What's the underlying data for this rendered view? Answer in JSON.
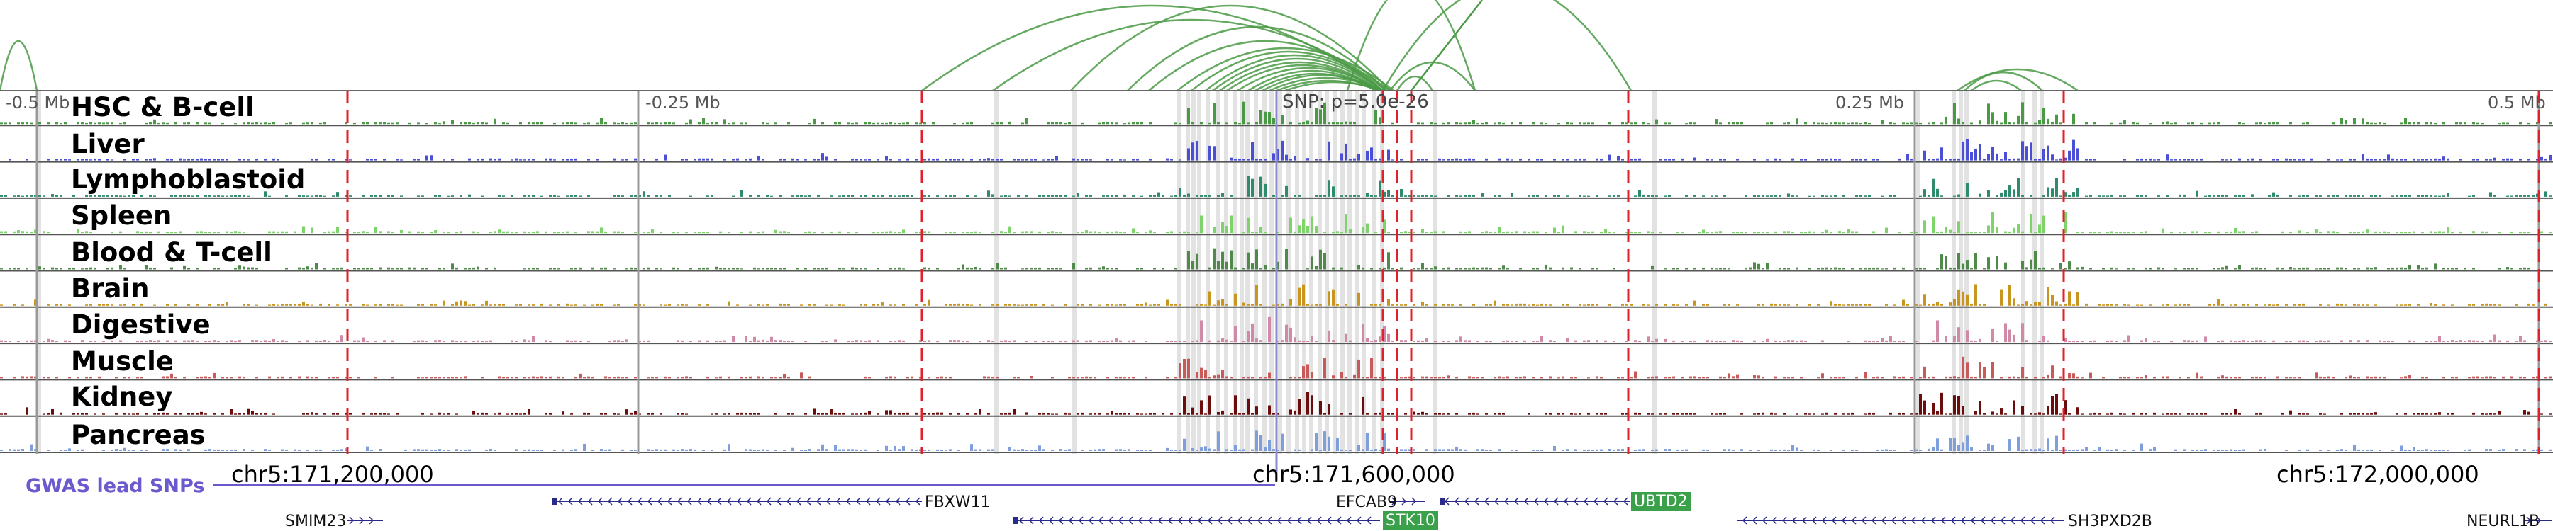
{
  "tracks": [
    {
      "label": "HSC & B-cell",
      "color": "#4a9a45"
    },
    {
      "label": "Liver",
      "color": "#4a4fd6"
    },
    {
      "label": "Lymphoblastoid",
      "color": "#2e8b6e"
    },
    {
      "label": "Spleen",
      "color": "#7ed36b"
    },
    {
      "label": "Blood & T-cell",
      "color": "#4f8a4a"
    },
    {
      "label": "Brain",
      "color": "#c8961e"
    },
    {
      "label": "Digestive",
      "color": "#d08aa8"
    },
    {
      "label": "Muscle",
      "color": "#c85a5a"
    },
    {
      "label": "Kidney",
      "color": "#6b0d0d"
    },
    {
      "label": "Pancreas",
      "color": "#7f9fdc"
    }
  ],
  "scale_ticks": [
    "-0.5 Mb",
    "-0.25 Mb",
    "0.25 Mb",
    "0.5 Mb"
  ],
  "snp_label": "SNP: p=5.0e-26",
  "coordinates": [
    "chr5:171,200,000",
    "chr5:171,600,000",
    "chr5:172,000,000"
  ],
  "gwas_label": "GWAS lead SNPs",
  "genes": {
    "fbxw11": "FBXW11",
    "efcab9": "EFCAB9",
    "ubtd2": "UBTD2",
    "smim23": "SMIM23",
    "stk10": "STK10",
    "sh3pxd2b": "SH3PXD2B",
    "neurl1b": "NEURL1B"
  },
  "colors": {
    "arc": "#4a9a45",
    "marker_red": "#e0202a",
    "highlight_gray": "#cfcfcf",
    "gwas_line": "#6a5acd",
    "gene_line": "#2a2a8a",
    "gene_highlight": "#3aa04a"
  }
}
